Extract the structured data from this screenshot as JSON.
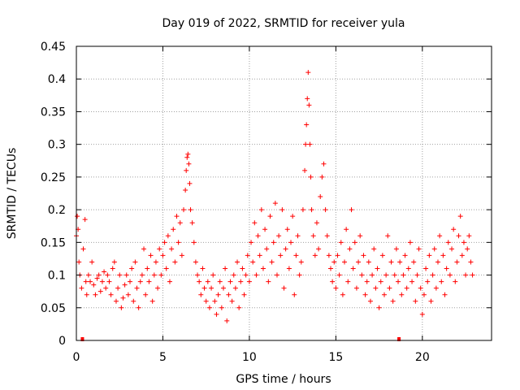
{
  "chart_data": {
    "type": "scatter",
    "title": "Day 019 of 2022, SRMTID for receiver yula",
    "xlabel": "GPS time / hours",
    "ylabel": "SRMTID / TECUs",
    "xlim": [
      0,
      24
    ],
    "ylim": [
      0,
      0.45
    ],
    "xticks": [
      0,
      5,
      10,
      15,
      20
    ],
    "xtick_labels": [
      "0",
      "5",
      "10",
      "15",
      "20"
    ],
    "yticks": [
      0,
      0.05,
      0.1,
      0.15,
      0.2,
      0.25,
      0.3,
      0.35,
      0.4,
      0.45
    ],
    "ytick_labels": [
      "0",
      "0.05",
      "0.1",
      "0.15",
      "0.2",
      "0.25",
      "0.3",
      "0.35",
      "0.4",
      "0.45"
    ],
    "grid": true,
    "marker": "+",
    "color": "#ff0000",
    "series": [
      {
        "name": "SRMTID",
        "points": [
          [
            0.0,
            0.16
          ],
          [
            0.05,
            0.19
          ],
          [
            0.1,
            0.17
          ],
          [
            0.15,
            0.12
          ],
          [
            0.2,
            0.1
          ],
          [
            0.3,
            0.08
          ],
          [
            0.4,
            0.14
          ],
          [
            0.5,
            0.185
          ],
          [
            0.55,
            0.09
          ],
          [
            0.6,
            0.07
          ],
          [
            0.7,
            0.1
          ],
          [
            0.8,
            0.09
          ],
          [
            0.9,
            0.12
          ],
          [
            1.0,
            0.085
          ],
          [
            1.1,
            0.07
          ],
          [
            1.2,
            0.095
          ],
          [
            1.3,
            0.1
          ],
          [
            1.4,
            0.075
          ],
          [
            1.5,
            0.09
          ],
          [
            1.6,
            0.105
          ],
          [
            1.7,
            0.08
          ],
          [
            1.8,
            0.1
          ],
          [
            1.9,
            0.09
          ],
          [
            2.0,
            0.07
          ],
          [
            2.1,
            0.11
          ],
          [
            2.2,
            0.12
          ],
          [
            2.3,
            0.06
          ],
          [
            2.4,
            0.08
          ],
          [
            2.5,
            0.1
          ],
          [
            2.6,
            0.05
          ],
          [
            2.7,
            0.065
          ],
          [
            2.8,
            0.085
          ],
          [
            2.9,
            0.1
          ],
          [
            3.0,
            0.07
          ],
          [
            3.1,
            0.09
          ],
          [
            3.2,
            0.11
          ],
          [
            3.3,
            0.06
          ],
          [
            3.4,
            0.12
          ],
          [
            3.5,
            0.08
          ],
          [
            3.6,
            0.05
          ],
          [
            3.7,
            0.09
          ],
          [
            3.8,
            0.1
          ],
          [
            3.9,
            0.14
          ],
          [
            4.0,
            0.07
          ],
          [
            4.1,
            0.11
          ],
          [
            4.2,
            0.09
          ],
          [
            4.3,
            0.13
          ],
          [
            4.4,
            0.06
          ],
          [
            4.5,
            0.1
          ],
          [
            4.6,
            0.12
          ],
          [
            4.7,
            0.08
          ],
          [
            4.8,
            0.14
          ],
          [
            4.9,
            0.1
          ],
          [
            5.0,
            0.13
          ],
          [
            5.1,
            0.15
          ],
          [
            5.2,
            0.11
          ],
          [
            5.3,
            0.16
          ],
          [
            5.4,
            0.09
          ],
          [
            5.5,
            0.14
          ],
          [
            5.6,
            0.17
          ],
          [
            5.7,
            0.12
          ],
          [
            5.8,
            0.19
          ],
          [
            5.9,
            0.15
          ],
          [
            6.0,
            0.18
          ],
          [
            6.1,
            0.13
          ],
          [
            6.2,
            0.2
          ],
          [
            6.3,
            0.23
          ],
          [
            6.35,
            0.26
          ],
          [
            6.4,
            0.28
          ],
          [
            6.45,
            0.285
          ],
          [
            6.5,
            0.27
          ],
          [
            6.55,
            0.24
          ],
          [
            6.6,
            0.2
          ],
          [
            6.7,
            0.18
          ],
          [
            6.8,
            0.15
          ],
          [
            6.9,
            0.12
          ],
          [
            7.0,
            0.1
          ],
          [
            7.1,
            0.09
          ],
          [
            7.2,
            0.07
          ],
          [
            7.3,
            0.11
          ],
          [
            7.4,
            0.08
          ],
          [
            7.5,
            0.06
          ],
          [
            7.6,
            0.09
          ],
          [
            7.7,
            0.05
          ],
          [
            7.8,
            0.08
          ],
          [
            7.9,
            0.1
          ],
          [
            8.0,
            0.06
          ],
          [
            8.1,
            0.04
          ],
          [
            8.2,
            0.07
          ],
          [
            8.3,
            0.09
          ],
          [
            8.4,
            0.05
          ],
          [
            8.5,
            0.08
          ],
          [
            8.6,
            0.11
          ],
          [
            8.7,
            0.03
          ],
          [
            8.8,
            0.07
          ],
          [
            8.9,
            0.09
          ],
          [
            9.0,
            0.06
          ],
          [
            9.1,
            0.1
          ],
          [
            9.2,
            0.08
          ],
          [
            9.3,
            0.12
          ],
          [
            9.4,
            0.05
          ],
          [
            9.5,
            0.09
          ],
          [
            9.6,
            0.11
          ],
          [
            9.7,
            0.07
          ],
          [
            9.8,
            0.1
          ],
          [
            9.9,
            0.13
          ],
          [
            10.0,
            0.09
          ],
          [
            10.1,
            0.15
          ],
          [
            10.2,
            0.12
          ],
          [
            10.3,
            0.18
          ],
          [
            10.4,
            0.1
          ],
          [
            10.5,
            0.16
          ],
          [
            10.6,
            0.13
          ],
          [
            10.7,
            0.2
          ],
          [
            10.8,
            0.11
          ],
          [
            10.9,
            0.17
          ],
          [
            11.0,
            0.14
          ],
          [
            11.1,
            0.09
          ],
          [
            11.2,
            0.19
          ],
          [
            11.3,
            0.12
          ],
          [
            11.4,
            0.15
          ],
          [
            11.5,
            0.21
          ],
          [
            11.6,
            0.1
          ],
          [
            11.7,
            0.16
          ],
          [
            11.8,
            0.13
          ],
          [
            11.9,
            0.2
          ],
          [
            12.0,
            0.08
          ],
          [
            12.1,
            0.14
          ],
          [
            12.2,
            0.17
          ],
          [
            12.3,
            0.11
          ],
          [
            12.4,
            0.15
          ],
          [
            12.5,
            0.19
          ],
          [
            12.6,
            0.07
          ],
          [
            12.7,
            0.13
          ],
          [
            12.8,
            0.16
          ],
          [
            12.9,
            0.1
          ],
          [
            13.0,
            0.12
          ],
          [
            13.1,
            0.2
          ],
          [
            13.2,
            0.26
          ],
          [
            13.25,
            0.3
          ],
          [
            13.3,
            0.33
          ],
          [
            13.35,
            0.37
          ],
          [
            13.4,
            0.41
          ],
          [
            13.45,
            0.36
          ],
          [
            13.5,
            0.3
          ],
          [
            13.55,
            0.25
          ],
          [
            13.6,
            0.2
          ],
          [
            13.7,
            0.16
          ],
          [
            13.8,
            0.13
          ],
          [
            13.9,
            0.18
          ],
          [
            14.0,
            0.14
          ],
          [
            14.1,
            0.22
          ],
          [
            14.2,
            0.25
          ],
          [
            14.3,
            0.27
          ],
          [
            14.4,
            0.2
          ],
          [
            14.5,
            0.16
          ],
          [
            14.6,
            0.13
          ],
          [
            14.7,
            0.11
          ],
          [
            14.8,
            0.09
          ],
          [
            14.9,
            0.12
          ],
          [
            15.0,
            0.08
          ],
          [
            15.1,
            0.13
          ],
          [
            15.2,
            0.1
          ],
          [
            15.3,
            0.15
          ],
          [
            15.4,
            0.07
          ],
          [
            15.5,
            0.12
          ],
          [
            15.6,
            0.17
          ],
          [
            15.7,
            0.09
          ],
          [
            15.8,
            0.14
          ],
          [
            15.9,
            0.2
          ],
          [
            16.0,
            0.11
          ],
          [
            16.1,
            0.15
          ],
          [
            16.2,
            0.08
          ],
          [
            16.3,
            0.12
          ],
          [
            16.4,
            0.16
          ],
          [
            16.5,
            0.1
          ],
          [
            16.6,
            0.13
          ],
          [
            16.7,
            0.07
          ],
          [
            16.8,
            0.09
          ],
          [
            16.9,
            0.12
          ],
          [
            17.0,
            0.06
          ],
          [
            17.1,
            0.1
          ],
          [
            17.2,
            0.14
          ],
          [
            17.3,
            0.08
          ],
          [
            17.4,
            0.11
          ],
          [
            17.5,
            0.05
          ],
          [
            17.6,
            0.09
          ],
          [
            17.7,
            0.13
          ],
          [
            17.8,
            0.07
          ],
          [
            17.9,
            0.1
          ],
          [
            18.0,
            0.16
          ],
          [
            18.1,
            0.08
          ],
          [
            18.2,
            0.12
          ],
          [
            18.3,
            0.06
          ],
          [
            18.4,
            0.1
          ],
          [
            18.5,
            0.14
          ],
          [
            18.6,
            0.09
          ],
          [
            18.7,
            0.12
          ],
          [
            18.8,
            0.07
          ],
          [
            18.9,
            0.1
          ],
          [
            19.0,
            0.13
          ],
          [
            19.1,
            0.08
          ],
          [
            19.2,
            0.11
          ],
          [
            19.3,
            0.15
          ],
          [
            19.4,
            0.09
          ],
          [
            19.5,
            0.12
          ],
          [
            19.6,
            0.06
          ],
          [
            19.7,
            0.1
          ],
          [
            19.8,
            0.14
          ],
          [
            19.9,
            0.08
          ],
          [
            20.0,
            0.04
          ],
          [
            20.1,
            0.07
          ],
          [
            20.2,
            0.11
          ],
          [
            20.3,
            0.09
          ],
          [
            20.4,
            0.13
          ],
          [
            20.5,
            0.06
          ],
          [
            20.6,
            0.1
          ],
          [
            20.7,
            0.14
          ],
          [
            20.8,
            0.08
          ],
          [
            20.9,
            0.12
          ],
          [
            21.0,
            0.16
          ],
          [
            21.1,
            0.09
          ],
          [
            21.2,
            0.13
          ],
          [
            21.3,
            0.07
          ],
          [
            21.4,
            0.11
          ],
          [
            21.5,
            0.15
          ],
          [
            21.6,
            0.1
          ],
          [
            21.7,
            0.14
          ],
          [
            21.8,
            0.17
          ],
          [
            21.9,
            0.09
          ],
          [
            22.0,
            0.12
          ],
          [
            22.1,
            0.16
          ],
          [
            22.2,
            0.19
          ],
          [
            22.3,
            0.13
          ],
          [
            22.4,
            0.15
          ],
          [
            22.5,
            0.1
          ],
          [
            22.6,
            0.14
          ],
          [
            22.7,
            0.16
          ],
          [
            22.8,
            0.12
          ],
          [
            22.9,
            0.1
          ]
        ]
      }
    ],
    "gap_markers": [
      0.35,
      18.65
    ]
  }
}
